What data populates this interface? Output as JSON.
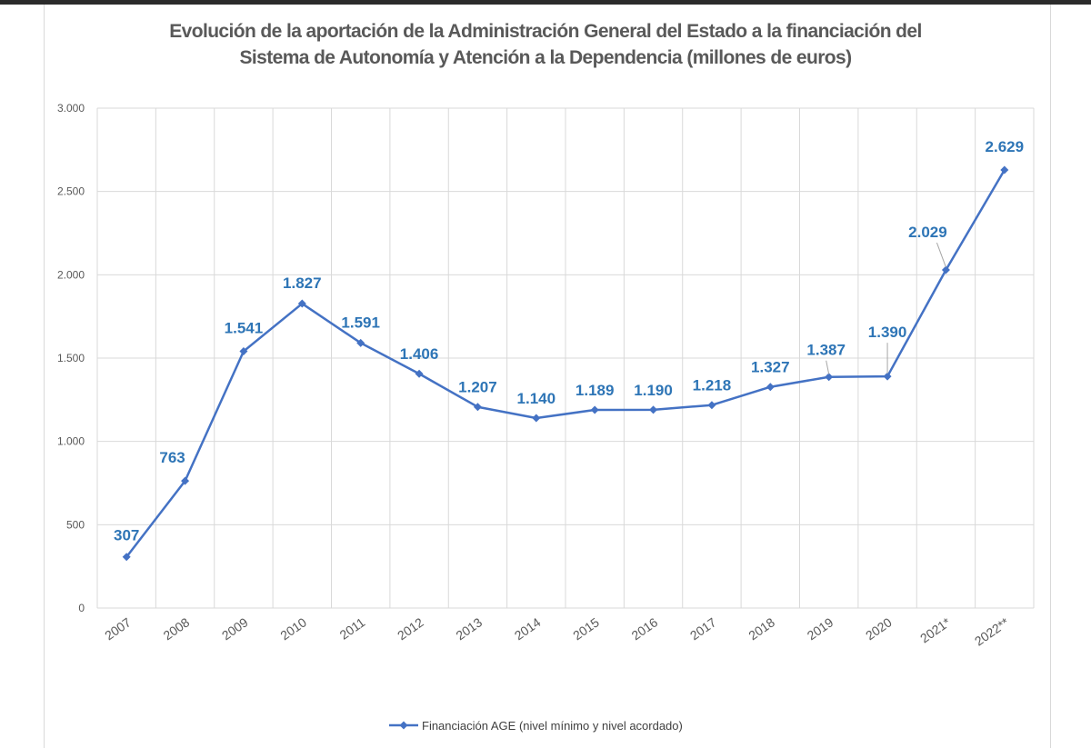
{
  "chart_data": {
    "type": "line",
    "title_line1": "Evolución de la aportación de la Administración General del Estado a la financiación del",
    "title_line2": "Sistema de Autonomía y Atención a la Dependencia (millones de euros)",
    "categories": [
      "2007",
      "2008",
      "2009",
      "2010",
      "2011",
      "2012",
      "2013",
      "2014",
      "2015",
      "2016",
      "2017",
      "2018",
      "2019",
      "2020",
      "2021*",
      "2022**"
    ],
    "series": [
      {
        "name": "Financiación AGE (nivel mínimo y nivel acordado)",
        "values": [
          307,
          763,
          1541,
          1827,
          1591,
          1406,
          1207,
          1140,
          1189,
          1190,
          1218,
          1327,
          1387,
          1390,
          2029,
          2629
        ],
        "labels": [
          "307",
          "763",
          "1.541",
          "1.827",
          "1.591",
          "1.406",
          "1.207",
          "1.140",
          "1.189",
          "1.190",
          "1.218",
          "1.327",
          "1.387",
          "1.390",
          "2.029",
          "2.629"
        ]
      }
    ],
    "y_ticks": [
      0,
      500,
      1000,
      1500,
      2000,
      2500,
      3000
    ],
    "y_tick_labels": [
      "0",
      "500",
      "1.000",
      "1.500",
      "2.000",
      "2.500",
      "3.000"
    ],
    "ylim": [
      0,
      3000
    ],
    "grid": true,
    "legend_position": "bottom",
    "line_color": "#4472c4",
    "label_color": "#2e75b6"
  }
}
